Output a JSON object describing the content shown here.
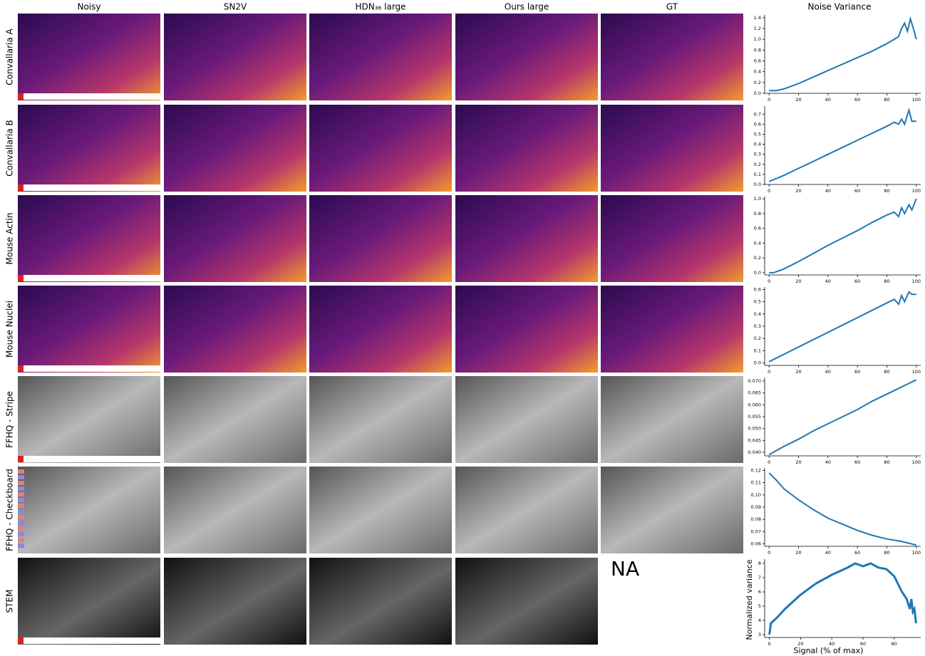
{
  "columns": [
    "Noisy",
    "SN2V",
    "HDN₃₆ large",
    "Ours large",
    "GT",
    "Noise Variance"
  ],
  "rows": [
    "Convallaria A",
    "Convallaria B",
    "Mouse Actin",
    "Mouse Nuclei",
    "FFHQ - Stripe",
    "FFHQ - Checkboard",
    "STEM"
  ],
  "missing_label": "NA",
  "chart_data": [
    {
      "type": "line",
      "color": "#1f77b4",
      "x": [
        0,
        5,
        10,
        20,
        30,
        40,
        50,
        60,
        70,
        80,
        85,
        88,
        90,
        92,
        94,
        96,
        98,
        100
      ],
      "values": [
        0.05,
        0.05,
        0.08,
        0.18,
        0.3,
        0.42,
        0.54,
        0.66,
        0.78,
        0.92,
        1.0,
        1.05,
        1.2,
        1.3,
        1.15,
        1.38,
        1.2,
        1.0
      ],
      "xlim": [
        -3,
        103
      ],
      "xticks": [
        0,
        20,
        40,
        60,
        80,
        100
      ],
      "ylim": [
        0,
        1.45
      ],
      "yticks": [
        {
          "value": 0,
          "label": "0.0"
        },
        0.2,
        0.4,
        0.6,
        0.8,
        {
          "value": 1,
          "label": "1.0"
        },
        1.2,
        1.4
      ]
    },
    {
      "type": "line",
      "color": "#1f77b4",
      "x": [
        0,
        10,
        20,
        30,
        40,
        50,
        60,
        70,
        80,
        85,
        88,
        90,
        92,
        95,
        97,
        100
      ],
      "values": [
        0.03,
        0.09,
        0.16,
        0.23,
        0.3,
        0.37,
        0.44,
        0.51,
        0.58,
        0.62,
        0.6,
        0.65,
        0.6,
        0.74,
        0.63,
        0.63
      ],
      "xlim": [
        -3,
        103
      ],
      "xticks": [
        0,
        20,
        40,
        60,
        80,
        100
      ],
      "ylim": [
        0,
        0.78
      ],
      "yticks": [
        {
          "value": 0,
          "label": "0.0"
        },
        0.1,
        0.2,
        0.3,
        0.4,
        0.5,
        0.6,
        0.7
      ]
    },
    {
      "type": "line",
      "color": "#1f77b4",
      "x": [
        0,
        3,
        10,
        20,
        30,
        40,
        50,
        60,
        70,
        80,
        85,
        88,
        90,
        92,
        95,
        97,
        100
      ],
      "values": [
        0,
        0,
        0.05,
        0.15,
        0.26,
        0.37,
        0.47,
        0.57,
        0.68,
        0.78,
        0.82,
        0.76,
        0.88,
        0.8,
        0.92,
        0.85,
        1.0
      ],
      "xlim": [
        -3,
        103
      ],
      "xticks": [
        0,
        20,
        40,
        60,
        80,
        100
      ],
      "ylim": [
        -0.03,
        1.03
      ],
      "yticks": [
        {
          "value": 0,
          "label": "0.0"
        },
        0.2,
        0.4,
        0.6,
        0.8,
        {
          "value": 1,
          "label": "1.0"
        }
      ]
    },
    {
      "type": "line",
      "color": "#1f77b4",
      "x": [
        0,
        10,
        20,
        30,
        40,
        50,
        60,
        70,
        80,
        85,
        88,
        90,
        92,
        95,
        97,
        100
      ],
      "values": [
        0.01,
        0.07,
        0.13,
        0.19,
        0.25,
        0.31,
        0.37,
        0.43,
        0.49,
        0.52,
        0.48,
        0.55,
        0.5,
        0.58,
        0.56,
        0.56
      ],
      "xlim": [
        -3,
        103
      ],
      "xticks": [
        0,
        20,
        40,
        60,
        80,
        100
      ],
      "ylim": [
        -0.02,
        0.62
      ],
      "yticks": [
        {
          "value": 0,
          "label": "0.0"
        },
        0.1,
        0.2,
        0.3,
        0.4,
        0.5,
        0.6
      ]
    },
    {
      "type": "line",
      "color": "#1f77b4",
      "x": [
        0,
        10,
        20,
        30,
        40,
        50,
        60,
        70,
        80,
        90,
        100
      ],
      "values": [
        0.039,
        0.0425,
        0.0455,
        0.049,
        0.052,
        0.055,
        0.058,
        0.0615,
        0.0645,
        0.0675,
        0.0705
      ],
      "xlim": [
        -3,
        103
      ],
      "xticks": [
        0,
        20,
        40,
        60,
        80,
        100
      ],
      "ylim": [
        0.0385,
        0.0715
      ],
      "yticks": [
        {
          "value": 0.04,
          "label": "0.040"
        },
        0.045,
        {
          "value": 0.05,
          "label": "0.050"
        },
        0.055,
        {
          "value": 0.06,
          "label": "0.060"
        },
        0.065,
        {
          "value": 0.07,
          "label": "0.070"
        }
      ]
    },
    {
      "type": "line",
      "color": "#1f77b4",
      "x": [
        0,
        5,
        10,
        20,
        30,
        40,
        50,
        60,
        70,
        80,
        90,
        100
      ],
      "values": [
        0.118,
        0.112,
        0.105,
        0.096,
        0.088,
        0.081,
        0.076,
        0.071,
        0.067,
        0.064,
        0.062,
        0.059
      ],
      "xlim": [
        -3,
        103
      ],
      "xticks": [
        0,
        20,
        40,
        60,
        80,
        100
      ],
      "ylim": [
        0.058,
        0.122
      ],
      "yticks": [
        0.06,
        0.07,
        0.08,
        0.09,
        {
          "value": 0.1,
          "label": "0.10"
        },
        0.11,
        0.12
      ]
    },
    {
      "type": "line",
      "color": "#1f77b4",
      "x": [
        0,
        1,
        5,
        10,
        20,
        30,
        40,
        50,
        55,
        60,
        65,
        70,
        75,
        80,
        85,
        88,
        90,
        91,
        92,
        93,
        94
      ],
      "values": [
        3.0,
        3.8,
        4.2,
        4.8,
        5.8,
        6.6,
        7.2,
        7.7,
        8.0,
        7.8,
        8.0,
        7.7,
        7.6,
        7.1,
        6.0,
        5.5,
        4.8,
        5.5,
        4.6,
        4.8,
        3.8
      ],
      "xlim": [
        -3,
        97
      ],
      "xticks": [
        0,
        20,
        40,
        60,
        80
      ],
      "ylim": [
        2.8,
        8.3
      ],
      "yticks": [
        3,
        4,
        5,
        6,
        7,
        8
      ],
      "ylabel": "Normalized variance",
      "xlabel": "Signal (% of max)"
    }
  ]
}
